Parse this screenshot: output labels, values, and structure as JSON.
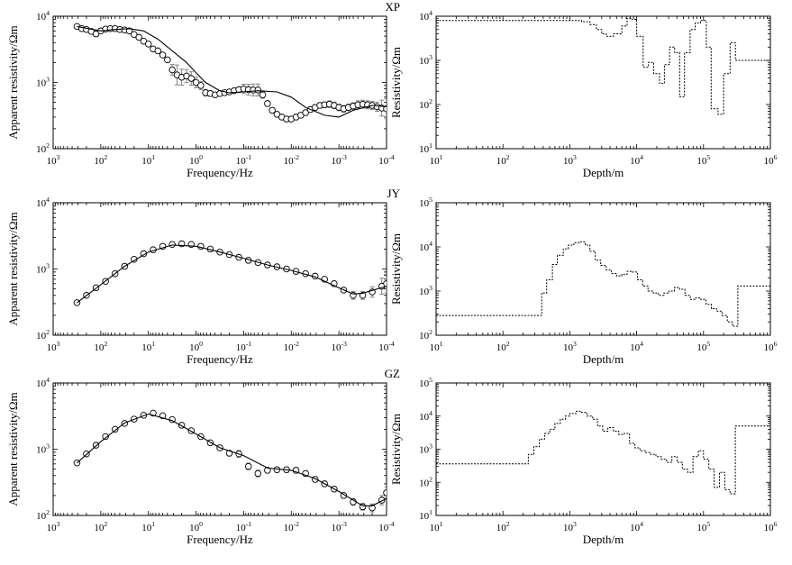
{
  "chart_data": [
    {
      "type": "scatter",
      "site_label": "",
      "xlabel": "Frequency/Hz",
      "ylabel": "Apparent resistivity/Ωm",
      "x_scale": "log",
      "y_scale": "log",
      "x_reversed": true,
      "xlim": [
        1000,
        0.0001
      ],
      "ylim": [
        100,
        10000
      ],
      "x_ticks": [
        "10^3",
        "10^2",
        "10^1",
        "10^0",
        "10^-1",
        "10^-2",
        "10^-3",
        "10^-4"
      ],
      "y_ticks": [
        "10^2",
        "10^3",
        "10^4"
      ],
      "series": [
        {
          "style": "circles-errorbars",
          "x": [
            316,
            251,
            200,
            158,
            126,
            100,
            79.4,
            63.1,
            50.1,
            39.8,
            31.6,
            25.1,
            20,
            15.8,
            12.6,
            10,
            7.94,
            6.31,
            5.01,
            3.98,
            3.16,
            2.51,
            2,
            1.58,
            1.26,
            1,
            0.794,
            0.631,
            0.501,
            0.398,
            0.316,
            0.251,
            0.2,
            0.158,
            0.126,
            0.1,
            0.0794,
            0.0631,
            0.0501,
            0.0398,
            0.0316,
            0.0251,
            0.02,
            0.0158,
            0.0126,
            0.01,
            0.00794,
            0.00631,
            0.00501,
            0.00398,
            0.00316,
            0.00251,
            0.002,
            0.00158,
            0.00126,
            0.001,
            0.000794,
            0.000631,
            0.000501,
            0.000398,
            0.000316,
            0.000251,
            0.0002,
            0.000158,
            0.000126,
            0.0001
          ],
          "y": [
            7000,
            6500,
            6300,
            5900,
            5400,
            6000,
            6400,
            6500,
            6500,
            6300,
            6200,
            6000,
            5300,
            4800,
            4200,
            3800,
            3200,
            3000,
            2600,
            2200,
            1550,
            1300,
            1200,
            1250,
            1150,
            1000,
            900,
            700,
            680,
            650,
            680,
            700,
            720,
            750,
            780,
            800,
            780,
            770,
            770,
            650,
            480,
            380,
            330,
            300,
            280,
            280,
            300,
            320,
            350,
            390,
            420,
            450,
            460,
            470,
            450,
            420,
            400,
            420,
            440,
            460,
            470,
            460,
            450,
            430,
            410,
            400
          ],
          "err": [
            0,
            0,
            0,
            0,
            0,
            0,
            0,
            0,
            0,
            0,
            0,
            0,
            0,
            0,
            0,
            0,
            0,
            0,
            0,
            0,
            0.08,
            0.15,
            0.12,
            0.1,
            0.1,
            0.08,
            0.06,
            0.05,
            0.04,
            0.03,
            0.03,
            0.03,
            0.03,
            0.03,
            0.03,
            0.07,
            0.08,
            0.09,
            0.09,
            0.05,
            0.04,
            0.04,
            0.04,
            0.04,
            0.04,
            0.04,
            0.04,
            0.04,
            0.04,
            0.04,
            0.04,
            0.04,
            0.04,
            0.05,
            0.05,
            0.05,
            0.05,
            0.05,
            0.05,
            0.06,
            0.06,
            0.06,
            0.06,
            0.07,
            0.12,
            0.15
          ]
        },
        {
          "style": "solid-line",
          "x": [
            316,
            100,
            50,
            25,
            12.6,
            6.31,
            3.16,
            1.58,
            1,
            0.631,
            0.316,
            0.2,
            0.1,
            0.05,
            0.02,
            0.01,
            0.005,
            0.002,
            0.001,
            0.0005,
            0.0002,
            0.0001
          ],
          "y": [
            7000,
            6000,
            6300,
            6500,
            6000,
            4500,
            3000,
            2000,
            1400,
            1000,
            750,
            700,
            720,
            750,
            720,
            600,
            420,
            320,
            300,
            380,
            450,
            430
          ]
        }
      ]
    },
    {
      "type": "line",
      "site_label": "XP",
      "xlabel": "Depth/m",
      "ylabel": "Resistivity/Ωm",
      "x_scale": "log",
      "y_scale": "log",
      "xlim": [
        10,
        1000000
      ],
      "ylim": [
        10,
        10000
      ],
      "x_ticks": [
        "10^1",
        "10^2",
        "10^3",
        "10^4",
        "10^5",
        "10^6"
      ],
      "y_ticks": [
        "10^1",
        "10^2",
        "10^3",
        "10^4"
      ],
      "series": [
        {
          "style": "dashed-step",
          "x": [
            10,
            1000,
            1500,
            2000,
            2500,
            3000,
            3500,
            4500,
            6000,
            7200,
            8500,
            10000,
            12500,
            15000,
            18000,
            22000,
            26000,
            31000,
            37000,
            44000,
            52000,
            63000,
            75000,
            90000,
            110000,
            130000,
            165000,
            200000,
            250000,
            300000,
            1000000
          ],
          "y": [
            8000,
            8000,
            7500,
            6500,
            5000,
            4000,
            3500,
            4000,
            6000,
            9000,
            8500,
            3500,
            700,
            900,
            500,
            300,
            800,
            2000,
            1500,
            150,
            1500,
            5000,
            7000,
            8000,
            2000,
            80,
            60,
            500,
            2500,
            1000,
            1000
          ]
        }
      ]
    },
    {
      "type": "scatter",
      "site_label": "",
      "xlabel": "Frequency/Hz",
      "ylabel": "Apparent resistivity/Ωm",
      "x_scale": "log",
      "y_scale": "log",
      "x_reversed": true,
      "xlim": [
        1000,
        0.0001
      ],
      "ylim": [
        100,
        10000
      ],
      "x_ticks": [
        "10^3",
        "10^2",
        "10^1",
        "10^0",
        "10^-1",
        "10^-2",
        "10^-3",
        "10^-4"
      ],
      "y_ticks": [
        "10^2",
        "10^3",
        "10^4"
      ],
      "series": [
        {
          "style": "circles-errorbars",
          "x": [
            316,
            200,
            126,
            79.4,
            50.1,
            31.6,
            20,
            12.6,
            7.94,
            5.01,
            3.16,
            2,
            1.26,
            0.794,
            0.501,
            0.316,
            0.2,
            0.126,
            0.0794,
            0.0501,
            0.0316,
            0.02,
            0.0126,
            0.00794,
            0.00501,
            0.00316,
            0.002,
            0.00126,
            0.000794,
            0.000501,
            0.000316,
            0.0002,
            0.000126,
            0.0001
          ],
          "y": [
            310,
            400,
            520,
            650,
            850,
            1100,
            1400,
            1700,
            1950,
            2200,
            2350,
            2400,
            2350,
            2200,
            2000,
            1800,
            1650,
            1500,
            1350,
            1250,
            1150,
            1080,
            1000,
            920,
            850,
            780,
            700,
            600,
            480,
            400,
            400,
            450,
            550,
            600
          ],
          "err": [
            0,
            0,
            0,
            0,
            0,
            0,
            0,
            0,
            0,
            0,
            0,
            0,
            0,
            0,
            0,
            0,
            0,
            0,
            0,
            0,
            0,
            0,
            0,
            0,
            0,
            0,
            0,
            0,
            0,
            0.06,
            0.06,
            0.08,
            0.12,
            0.14
          ]
        },
        {
          "style": "solid-line",
          "x": [
            316,
            100,
            31.6,
            10,
            3.16,
            1,
            0.316,
            0.1,
            0.0316,
            0.01,
            0.00316,
            0.001,
            0.000501,
            0.000316,
            0.0001
          ],
          "y": [
            310,
            580,
            1100,
            1800,
            2300,
            2200,
            1800,
            1450,
            1150,
            950,
            760,
            520,
            420,
            430,
            550
          ]
        }
      ]
    },
    {
      "type": "line",
      "site_label": "JY",
      "xlabel": "Depth/m",
      "ylabel": "Resistivity/Ωm",
      "x_scale": "log",
      "y_scale": "log",
      "xlim": [
        10,
        1000000
      ],
      "ylim": [
        100,
        100000
      ],
      "x_ticks": [
        "10^1",
        "10^2",
        "10^3",
        "10^4",
        "10^5",
        "10^6"
      ],
      "y_ticks": [
        "10^2",
        "10^3",
        "10^4",
        "10^5"
      ],
      "series": [
        {
          "style": "dashed-step",
          "x": [
            10,
            320,
            380,
            450,
            550,
            650,
            800,
            950,
            1150,
            1400,
            1700,
            2000,
            2400,
            2900,
            3500,
            4200,
            5000,
            6000,
            7200,
            8600,
            10300,
            12300,
            14800,
            17700,
            21200,
            25500,
            30600,
            36700,
            44000,
            52800,
            63300,
            76000,
            91000,
            109000,
            131000,
            157000,
            189000,
            227000,
            272000,
            326000,
            1000000
          ],
          "y": [
            280,
            280,
            900,
            1800,
            4000,
            6500,
            9000,
            11000,
            12500,
            13000,
            11000,
            8000,
            5000,
            3800,
            3000,
            2500,
            2200,
            2400,
            2800,
            2700,
            1800,
            1300,
            1000,
            900,
            800,
            900,
            1000,
            1200,
            1100,
            800,
            650,
            700,
            650,
            500,
            400,
            350,
            280,
            200,
            160,
            1300,
            1300
          ]
        }
      ]
    },
    {
      "type": "scatter",
      "site_label": "",
      "xlabel": "Frequency/Hz",
      "ylabel": "Apparent resistivity/Ωm",
      "x_scale": "log",
      "y_scale": "log",
      "x_reversed": true,
      "xlim": [
        1000,
        0.0001
      ],
      "ylim": [
        100,
        10000
      ],
      "x_ticks": [
        "10^3",
        "10^2",
        "10^1",
        "10^0",
        "10^-1",
        "10^-2",
        "10^-3",
        "10^-4"
      ],
      "y_ticks": [
        "10^2",
        "10^3",
        "10^4"
      ],
      "series": [
        {
          "style": "circles-errorbars",
          "x": [
            316,
            200,
            126,
            79.4,
            50.1,
            31.6,
            20,
            12.6,
            7.94,
            5.01,
            3.16,
            2,
            1.26,
            0.794,
            0.501,
            0.316,
            0.2,
            0.126,
            0.0794,
            0.0501,
            0.0316,
            0.02,
            0.0126,
            0.00794,
            0.00501,
            0.00316,
            0.002,
            0.00126,
            0.000794,
            0.000501,
            0.000316,
            0.0002,
            0.000126,
            0.0001
          ],
          "y": [
            620,
            850,
            1150,
            1550,
            2000,
            2450,
            2850,
            3250,
            3500,
            3200,
            2800,
            2300,
            1900,
            1550,
            1250,
            1050,
            870,
            850,
            550,
            430,
            480,
            490,
            490,
            480,
            430,
            350,
            300,
            250,
            200,
            160,
            135,
            130,
            170,
            220
          ],
          "err": [
            0,
            0,
            0,
            0,
            0,
            0,
            0,
            0,
            0,
            0,
            0,
            0,
            0,
            0,
            0,
            0,
            0.04,
            0.05,
            0.05,
            0.05,
            0.04,
            0.04,
            0.04,
            0.04,
            0.04,
            0.04,
            0.04,
            0.04,
            0.04,
            0.05,
            0.05,
            0.06,
            0.07,
            0.08
          ]
        },
        {
          "style": "solid-line",
          "x": [
            316,
            100,
            31.6,
            10,
            3.16,
            1,
            0.316,
            0.1,
            0.0316,
            0.01,
            0.00316,
            0.001,
            0.000316,
            0.0002,
            0.0001
          ],
          "y": [
            620,
            1300,
            2500,
            3400,
            2700,
            1700,
            1050,
            800,
            520,
            480,
            360,
            230,
            140,
            140,
            180
          ]
        }
      ]
    },
    {
      "type": "line",
      "site_label": "GZ",
      "xlabel": "Depth/m",
      "ylabel": "Resistivity/Ωm",
      "x_scale": "log",
      "y_scale": "log",
      "xlim": [
        10,
        1000000
      ],
      "ylim": [
        10,
        100000
      ],
      "x_ticks": [
        "10^1",
        "10^2",
        "10^3",
        "10^4",
        "10^5",
        "10^6"
      ],
      "y_ticks": [
        "10^1",
        "10^2",
        "10^3",
        "10^4",
        "10^5"
      ],
      "series": [
        {
          "style": "dashed-step",
          "x": [
            10,
            200,
            240,
            290,
            350,
            420,
            500,
            600,
            720,
            860,
            1000,
            1250,
            1500,
            1800,
            2200,
            2600,
            3100,
            3700,
            4500,
            5400,
            6500,
            7800,
            9400,
            11200,
            13500,
            16200,
            19400,
            23300,
            28000,
            33600,
            40300,
            48300,
            58000,
            69600,
            83500,
            100000,
            120000,
            144000,
            173000,
            208000,
            249000,
            299000,
            1000000
          ],
          "y": [
            360,
            360,
            700,
            1200,
            2000,
            3000,
            4000,
            6000,
            8000,
            10000,
            12000,
            14000,
            13000,
            10000,
            8000,
            5000,
            3500,
            4500,
            3500,
            2800,
            3000,
            1500,
            1100,
            900,
            800,
            700,
            600,
            500,
            400,
            600,
            400,
            250,
            200,
            600,
            900,
            500,
            250,
            70,
            200,
            60,
            45,
            5000,
            5000
          ]
        }
      ]
    }
  ]
}
